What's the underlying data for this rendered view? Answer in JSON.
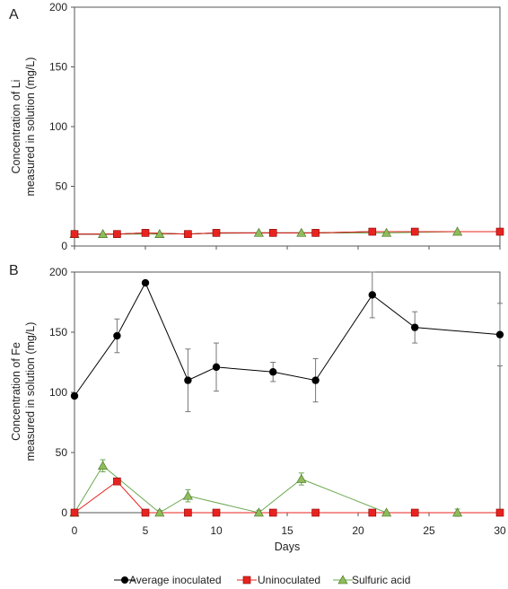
{
  "chart_data": [
    {
      "panel_label": "A",
      "type": "line",
      "ylabel": [
        "Concentration of Li",
        "measured in solution (mg/L)"
      ],
      "xlabel": "",
      "xlim": [
        0,
        30
      ],
      "ylim": [
        0,
        200
      ],
      "yticks": [
        0,
        50,
        100,
        150,
        200
      ],
      "xticks": [
        0,
        5,
        10,
        15,
        20,
        25,
        30
      ],
      "show_x_tick_labels": false,
      "series": [
        {
          "name": "Average inoculated",
          "color": "#000000",
          "marker": "circle",
          "x": [
            0,
            3,
            5,
            8,
            10,
            14,
            17,
            21,
            24,
            30
          ],
          "y": [
            10,
            10,
            11,
            10,
            11,
            11,
            11,
            12,
            12,
            12
          ]
        },
        {
          "name": "Sulfuric acid",
          "color": "#6aa84f",
          "marker": "triangle",
          "x": [
            0,
            2,
            6,
            13,
            16,
            22,
            27
          ],
          "y": [
            10,
            10,
            10,
            11,
            11,
            11,
            12
          ]
        },
        {
          "name": "Uninoculated",
          "color": "#e8231f",
          "marker": "square",
          "x": [
            0,
            3,
            5,
            8,
            10,
            14,
            17,
            21,
            24,
            30
          ],
          "y": [
            10,
            10,
            11,
            10,
            11,
            11,
            11,
            12,
            12,
            12
          ]
        }
      ]
    },
    {
      "panel_label": "B",
      "type": "line",
      "ylabel": [
        "Concentration of Fe",
        "measured in solution (mg/L)"
      ],
      "xlabel": "Days",
      "xlim": [
        0,
        30
      ],
      "ylim": [
        0,
        200
      ],
      "yticks": [
        0,
        50,
        100,
        150,
        200
      ],
      "xticks": [
        0,
        5,
        10,
        15,
        20,
        25,
        30
      ],
      "show_x_tick_labels": true,
      "series": [
        {
          "name": "Average inoculated",
          "color": "#000000",
          "marker": "circle",
          "x": [
            0,
            3,
            5,
            8,
            10,
            14,
            17,
            21,
            24,
            30
          ],
          "y": [
            97,
            147,
            191,
            110,
            121,
            117,
            110,
            181,
            154,
            148
          ],
          "err": [
            0,
            14,
            0,
            26,
            20,
            8,
            18,
            19,
            13,
            26
          ]
        },
        {
          "name": "Sulfuric acid",
          "color": "#6aa84f",
          "marker": "triangle",
          "x": [
            0,
            2,
            6,
            8,
            13,
            16,
            22,
            27
          ],
          "y": [
            0,
            39,
            0,
            14,
            0,
            28,
            0,
            0
          ],
          "err": [
            0,
            5,
            2,
            5,
            2,
            5,
            0,
            3
          ]
        },
        {
          "name": "Uninoculated",
          "color": "#e8231f",
          "marker": "square",
          "x": [
            0,
            3,
            5,
            8,
            10,
            14,
            17,
            21,
            24,
            30
          ],
          "y": [
            0,
            26,
            0,
            0,
            0,
            0,
            0,
            0,
            0,
            0
          ],
          "err": [
            0,
            0,
            0,
            0,
            0,
            0,
            0,
            0,
            0,
            0
          ]
        }
      ]
    }
  ],
  "legend": [
    {
      "label": "Average inoculated",
      "color": "#000000",
      "marker": "circle"
    },
    {
      "label": "Uninoculated",
      "color": "#e8231f",
      "marker": "square"
    },
    {
      "label": "Sulfuric acid",
      "color": "#6aa84f",
      "marker": "triangle"
    }
  ]
}
